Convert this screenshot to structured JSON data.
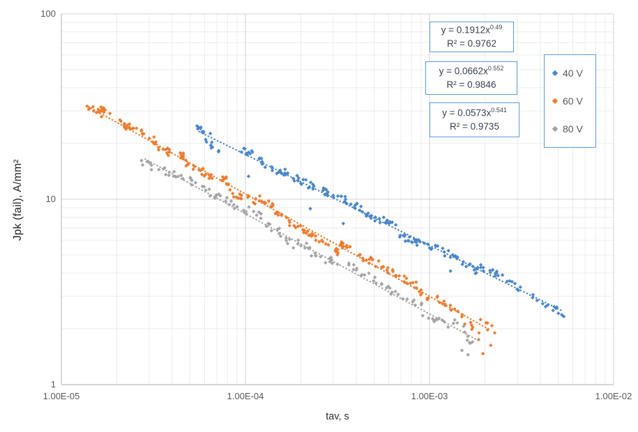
{
  "chart_data": {
    "type": "scatter",
    "title": "",
    "xlabel": "tav, s",
    "ylabel": "Jpk (fail),  A/mm²",
    "grid": true,
    "legend_position": "right-inside",
    "x_axis": {
      "scale": "log",
      "min": 1e-05,
      "max": 0.01,
      "tick_labels": [
        "1.00E-05",
        "1.00E-04",
        "1.00E-03",
        "1.00E-02"
      ]
    },
    "y_axis": {
      "scale": "log",
      "min": 1,
      "max": 100,
      "tick_labels": [
        "1",
        "10",
        "100"
      ]
    },
    "series": [
      {
        "name": "40 V",
        "color": "#4A87C9",
        "marker": "diamond",
        "trendline": {
          "eq_base": "y = 0.1912x",
          "eq_exp": "0.49",
          "r2": "R² = 0.9762",
          "fit_a": 0.1912,
          "fit_b": -0.49,
          "x_start": 5.6e-05,
          "x_end": 0.0053
        },
        "clusters": [
          [
            6e-05,
            22.4,
            10
          ],
          [
            6.7e-05,
            20.0,
            8
          ],
          [
            0.0001,
            17.4,
            9
          ],
          [
            0.00012,
            16.0,
            8
          ],
          [
            0.00015,
            14.2,
            10
          ],
          [
            0.00018,
            13.0,
            9
          ],
          [
            0.00022,
            11.9,
            10
          ],
          [
            0.00027,
            10.7,
            12
          ],
          [
            0.00033,
            9.7,
            10
          ],
          [
            0.0004,
            8.8,
            9
          ],
          [
            0.0005,
            7.9,
            10
          ],
          [
            0.0006,
            7.2,
            10
          ],
          [
            0.00075,
            6.5,
            12
          ],
          [
            0.0009,
            5.9,
            8
          ],
          [
            0.0011,
            5.4,
            9
          ],
          [
            0.00135,
            4.9,
            8
          ],
          [
            0.00165,
            4.4,
            10
          ],
          [
            0.002,
            4.0,
            9
          ],
          [
            0.0025,
            3.6,
            8
          ],
          [
            0.003,
            3.3,
            7
          ],
          [
            0.004,
            2.9,
            6
          ],
          [
            0.005,
            2.55,
            7
          ]
        ],
        "outliers": [
          [
            0.000104,
            13.3
          ],
          [
            0.000225,
            8.9
          ],
          [
            0.00034,
            7.4
          ],
          [
            0.0013,
            4.1
          ]
        ]
      },
      {
        "name": "60 V",
        "color": "#ED7D31",
        "marker": "diamond",
        "trendline": {
          "eq_base": "y = 0.0662x",
          "eq_exp": "0.552",
          "r2": "R² = 0.9846",
          "fit_a": 0.0662,
          "fit_b": -0.552,
          "x_start": 1.4e-05,
          "x_end": 0.00215
        },
        "clusters": [
          [
            1.5e-05,
            30.4,
            10
          ],
          [
            1.75e-05,
            27.9,
            8
          ],
          [
            2.1e-05,
            25.2,
            9
          ],
          [
            2.5e-05,
            23.0,
            8
          ],
          [
            3e-05,
            20.8,
            9
          ],
          [
            3.6e-05,
            18.8,
            10
          ],
          [
            4.3e-05,
            17.0,
            9
          ],
          [
            5.2e-05,
            15.3,
            10
          ],
          [
            6.3e-05,
            13.8,
            11
          ],
          [
            7.5e-05,
            12.5,
            9
          ],
          [
            9e-05,
            11.3,
            10
          ],
          [
            0.00011,
            10.1,
            10
          ],
          [
            0.00013,
            9.3,
            12
          ],
          [
            0.00016,
            8.3,
            10
          ],
          [
            0.0002,
            7.3,
            10
          ],
          [
            0.00024,
            6.6,
            9
          ],
          [
            0.00029,
            5.9,
            10
          ],
          [
            0.00035,
            5.3,
            12
          ],
          [
            0.00043,
            4.8,
            8
          ],
          [
            0.00052,
            4.3,
            9
          ],
          [
            0.00063,
            3.9,
            8
          ],
          [
            0.00077,
            3.5,
            9
          ],
          [
            0.00093,
            3.1,
            8
          ],
          [
            0.00115,
            2.8,
            7
          ],
          [
            0.0014,
            2.5,
            7
          ],
          [
            0.0017,
            2.2,
            6
          ],
          [
            0.00205,
            2.0,
            6
          ]
        ],
        "outliers": [
          [
            0.00195,
            1.47
          ],
          [
            0.00215,
            1.63
          ],
          [
            0.00185,
            1.75
          ]
        ]
      },
      {
        "name": "80 V",
        "color": "#A5A5A5",
        "marker": "diamond",
        "trendline": {
          "eq_base": "y = 0.0573x",
          "eq_exp": "0.541",
          "r2": "R² = 0.9735",
          "fit_a": 0.0573,
          "fit_b": -0.541,
          "x_start": 2.85e-05,
          "x_end": 0.0019
        },
        "clusters": [
          [
            3e-05,
            16.0,
            7
          ],
          [
            3.6e-05,
            14.5,
            6
          ],
          [
            4.4e-05,
            13.0,
            6
          ],
          [
            5.3e-05,
            11.8,
            6
          ],
          [
            6.4e-05,
            10.6,
            7
          ],
          [
            7.8e-05,
            9.6,
            6
          ],
          [
            9.5e-05,
            8.6,
            7
          ],
          [
            0.000115,
            7.8,
            6
          ],
          [
            0.00014,
            7.0,
            7
          ],
          [
            0.00017,
            6.3,
            6
          ],
          [
            0.00021,
            5.6,
            7
          ],
          [
            0.00025,
            5.1,
            6
          ],
          [
            0.00031,
            4.5,
            6
          ],
          [
            0.00038,
            4.1,
            6
          ],
          [
            0.00046,
            3.7,
            6
          ],
          [
            0.00056,
            3.3,
            6
          ],
          [
            0.00068,
            3.0,
            6
          ],
          [
            0.00083,
            2.7,
            6
          ],
          [
            0.001,
            2.4,
            6
          ],
          [
            0.0012,
            2.2,
            5
          ],
          [
            0.00145,
            1.97,
            5
          ],
          [
            0.00175,
            1.78,
            5
          ]
        ],
        "outliers": [
          [
            0.0015,
            1.53
          ],
          [
            0.00162,
            1.45
          ]
        ]
      }
    ],
    "colors": {
      "box_border": "#5B9BD5",
      "grid_minor": "#ECECEC",
      "grid_major": "#D2D2D2",
      "axis_line": "#BFBFBF",
      "tick_text": "#595959"
    }
  }
}
